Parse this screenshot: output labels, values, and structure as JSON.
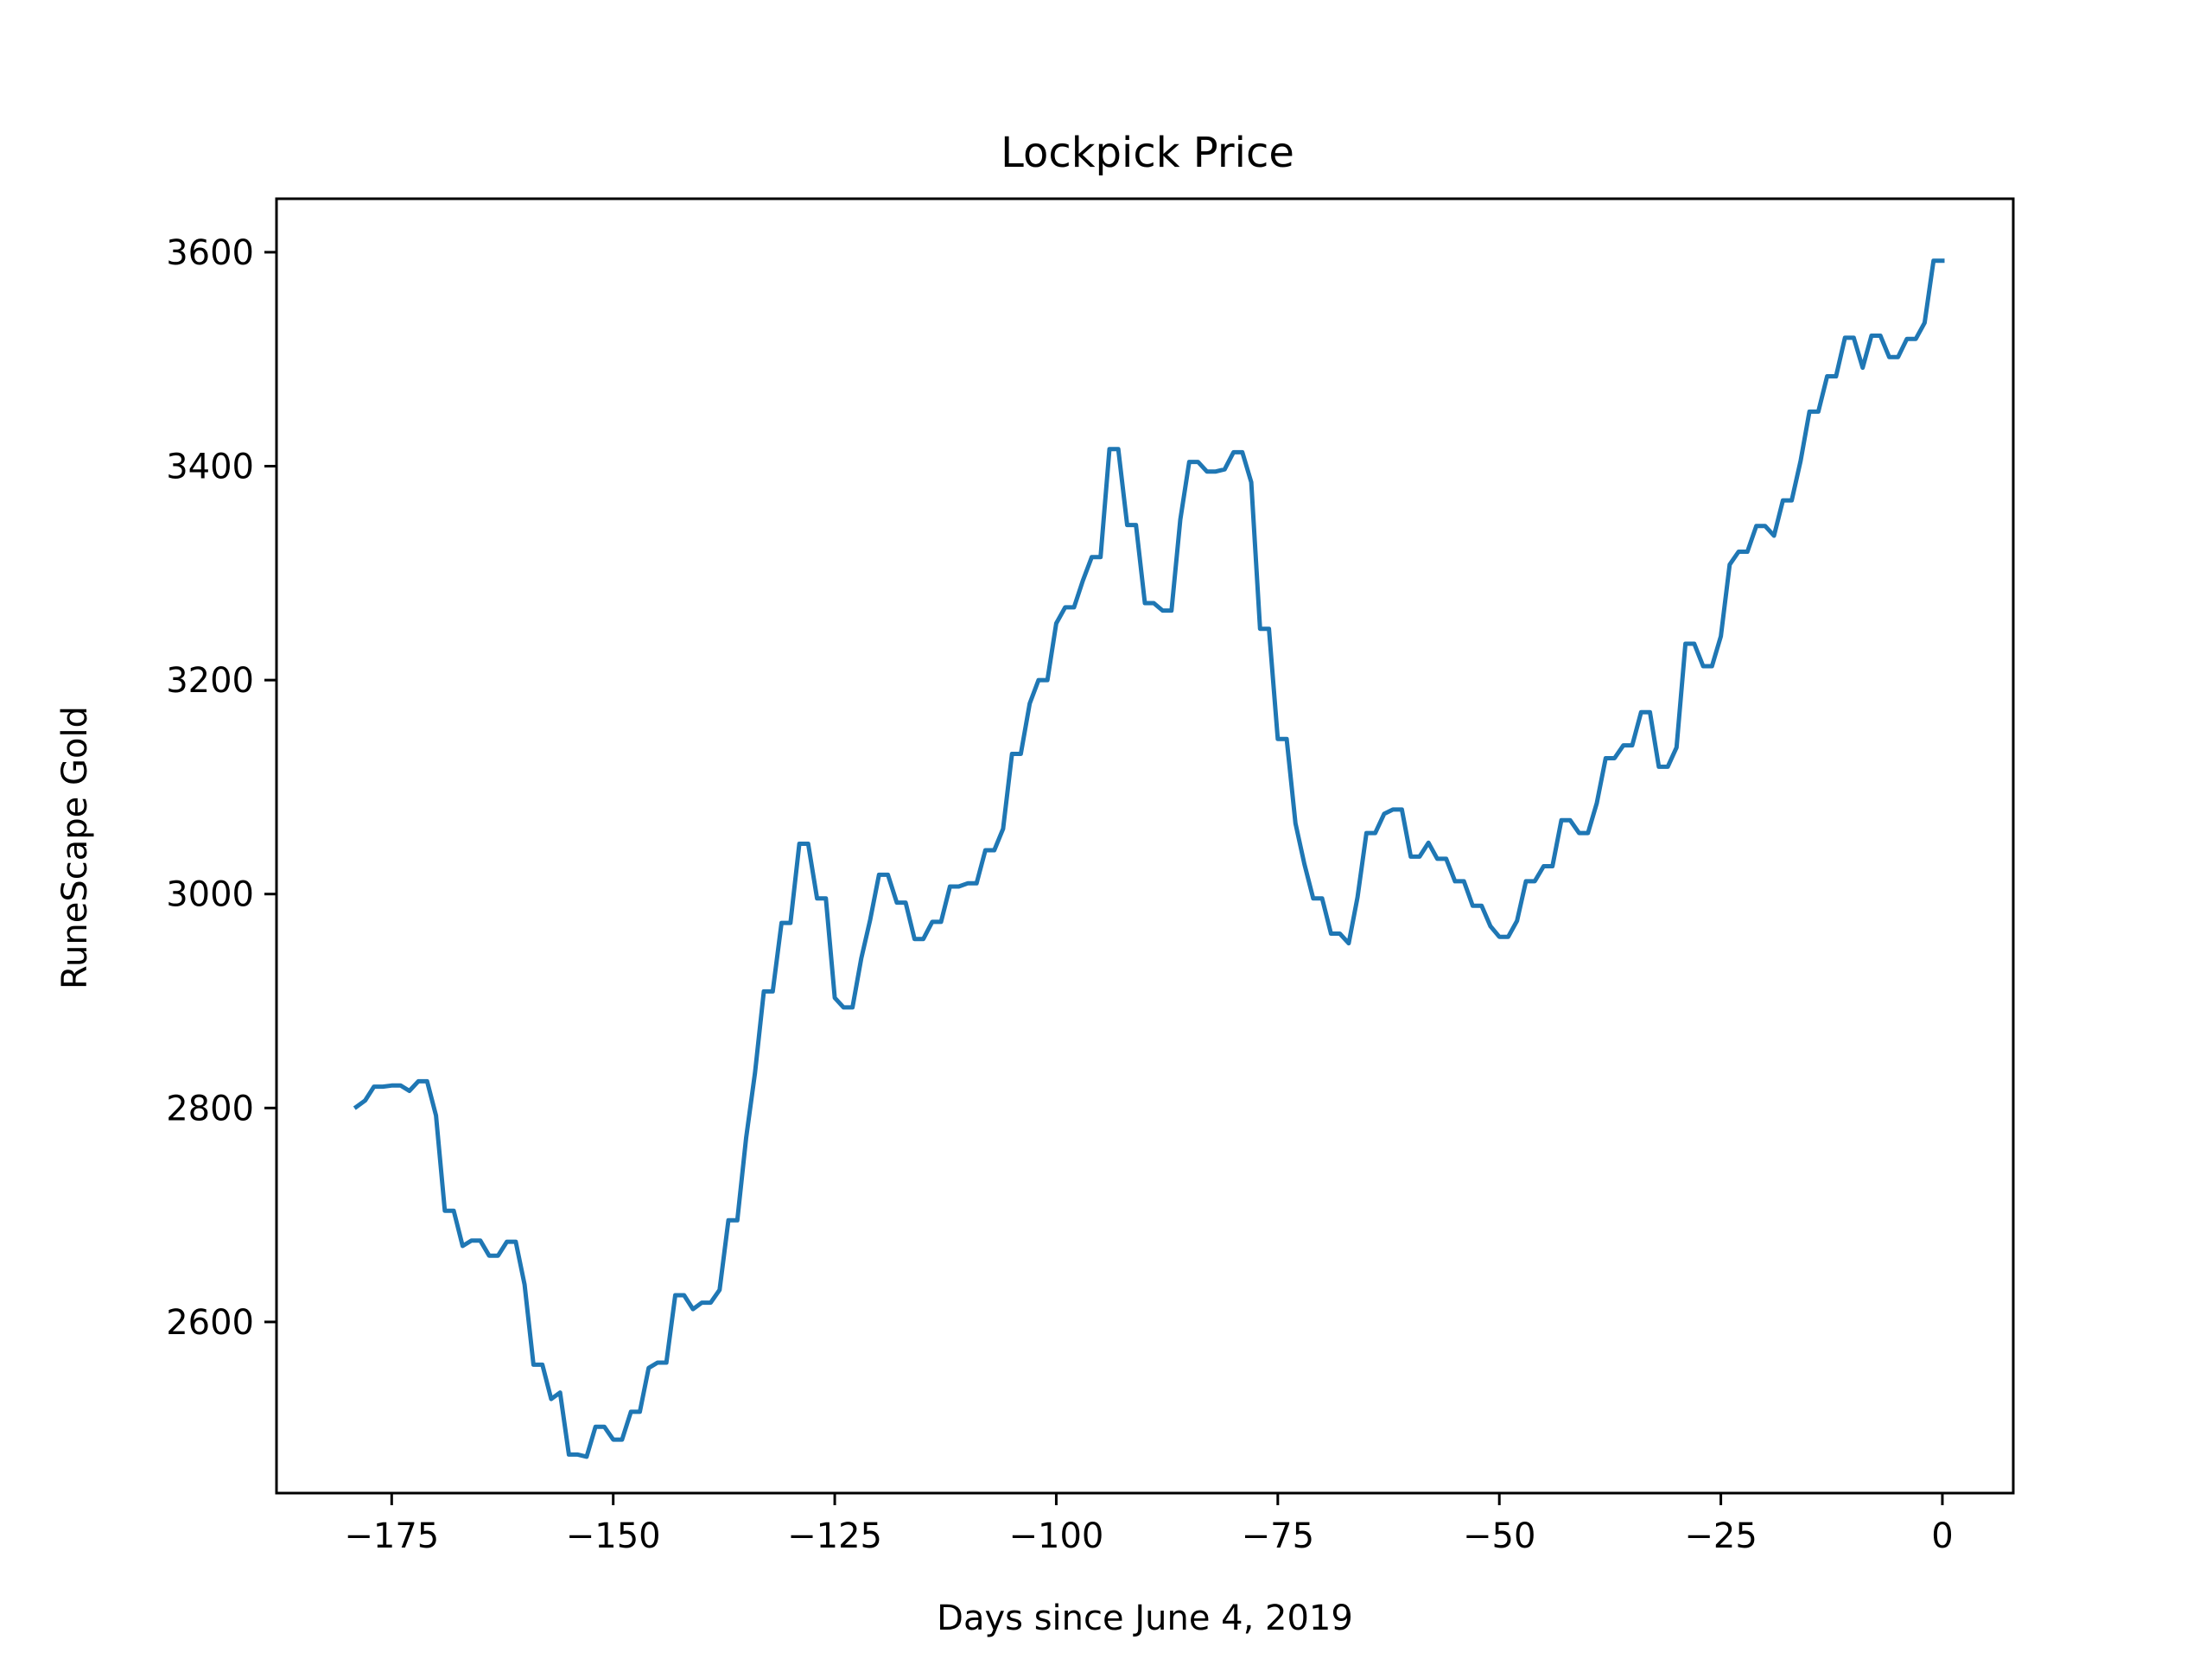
{
  "chart_data": {
    "type": "line",
    "title": "Lockpick Price",
    "xlabel": "Days since June 4, 2019",
    "ylabel": "RuneScape Gold",
    "xlim": [
      -188,
      8
    ],
    "ylim": [
      2440,
      3650
    ],
    "xticks": [
      -175,
      -150,
      -125,
      -100,
      -75,
      -50,
      -25,
      0
    ],
    "xtick_labels": [
      "−175",
      "−150",
      "−125",
      "−100",
      "−75",
      "−50",
      "−25",
      "0"
    ],
    "yticks": [
      2600,
      2800,
      3000,
      3200,
      3400,
      3600
    ],
    "ytick_labels": [
      "2600",
      "2800",
      "3000",
      "3200",
      "3400",
      "3600"
    ],
    "grid": false,
    "color": "#1f77b4",
    "series": [
      {
        "x": [
          -179,
          -178,
          -177,
          -176,
          -175,
          -174,
          -173,
          -172,
          -171,
          -170,
          -169,
          -168,
          -167,
          -166,
          -165,
          -164,
          -163,
          -162,
          -161,
          -160,
          -159,
          -158,
          -157,
          -156,
          -155,
          -154,
          -153,
          -152,
          -151,
          -150,
          -149,
          -148,
          -147,
          -146,
          -145,
          -144,
          -143,
          -142,
          -141,
          -140,
          -139,
          -138,
          -137,
          -136,
          -135,
          -134,
          -133,
          -132,
          -131,
          -130,
          -129,
          -128,
          -127,
          -126,
          -125,
          -124,
          -123,
          -122,
          -121,
          -120,
          -119,
          -118,
          -117,
          -116,
          -115,
          -114,
          -113,
          -112,
          -111,
          -110,
          -109,
          -108,
          -107,
          -106,
          -105,
          -104,
          -103,
          -102,
          -101,
          -100,
          -99,
          -98,
          -97,
          -96,
          -95,
          -94,
          -93,
          -92,
          -91,
          -90,
          -89,
          -88,
          -87,
          -86,
          -85,
          -84,
          -83,
          -82,
          -81,
          -80,
          -79,
          -78,
          -77,
          -76,
          -75,
          -74,
          -73,
          -72,
          -71,
          -70,
          -69,
          -68,
          -67,
          -66,
          -65,
          -64,
          -63,
          -62,
          -61,
          -60,
          -59,
          -58,
          -57,
          -56,
          -55,
          -54,
          -53,
          -52,
          -51,
          -50,
          -49,
          -48,
          -47,
          -46,
          -45,
          -44,
          -43,
          -42,
          -41,
          -40,
          -39,
          -38,
          -37,
          -36,
          -35,
          -34,
          -33,
          -32,
          -31,
          -30,
          -29,
          -28,
          -27,
          -26,
          -25,
          -24,
          -23,
          -22,
          -21,
          -20,
          -19,
          -18,
          -17,
          -16,
          -15,
          -14,
          -13,
          -12,
          -11,
          -10,
          -9,
          -8,
          -7,
          -6,
          -5,
          -4,
          -3,
          -2,
          -1,
          0
        ],
        "y": [
          2801,
          2807,
          2820,
          2820,
          2821,
          2821,
          2816,
          2825,
          2825,
          2793,
          2704,
          2704,
          2671,
          2676,
          2676,
          2662,
          2662,
          2675,
          2675,
          2635,
          2560,
          2560,
          2528,
          2534,
          2476,
          2476,
          2474,
          2502,
          2502,
          2490,
          2490,
          2516,
          2516,
          2557,
          2562,
          2562,
          2625,
          2625,
          2612,
          2618,
          2618,
          2630,
          2695,
          2695,
          2772,
          2833,
          2909,
          2909,
          2973,
          2973,
          3047,
          3047,
          2996,
          2996,
          2903,
          2894,
          2894,
          2940,
          2976,
          3018,
          3018,
          2992,
          2992,
          2958,
          2958,
          2974,
          2974,
          3007,
          3007,
          3010,
          3010,
          3041,
          3041,
          3061,
          3131,
          3131,
          3178,
          3200,
          3200,
          3253,
          3268,
          3268,
          3293,
          3315,
          3315,
          3416,
          3416,
          3345,
          3345,
          3272,
          3272,
          3265,
          3265,
          3350,
          3404,
          3404,
          3395,
          3395,
          3397,
          3413,
          3413,
          3385,
          3248,
          3248,
          3145,
          3145,
          3066,
          3028,
          2996,
          2996,
          2963,
          2963,
          2954,
          2997,
          3057,
          3057,
          3075,
          3079,
          3079,
          3035,
          3035,
          3048,
          3033,
          3033,
          3012,
          3012,
          2989,
          2989,
          2970,
          2960,
          2960,
          2975,
          3012,
          3012,
          3026,
          3026,
          3069,
          3069,
          3057,
          3057,
          3085,
          3127,
          3127,
          3139,
          3139,
          3170,
          3170,
          3119,
          3119,
          3137,
          3234,
          3234,
          3213,
          3213,
          3241,
          3308,
          3320,
          3320,
          3344,
          3344,
          3335,
          3368,
          3368,
          3405,
          3451,
          3451,
          3484,
          3484,
          3520,
          3520,
          3492,
          3522,
          3522,
          3502,
          3502,
          3519,
          3519,
          3534,
          3592,
          3592
        ]
      }
    ]
  }
}
